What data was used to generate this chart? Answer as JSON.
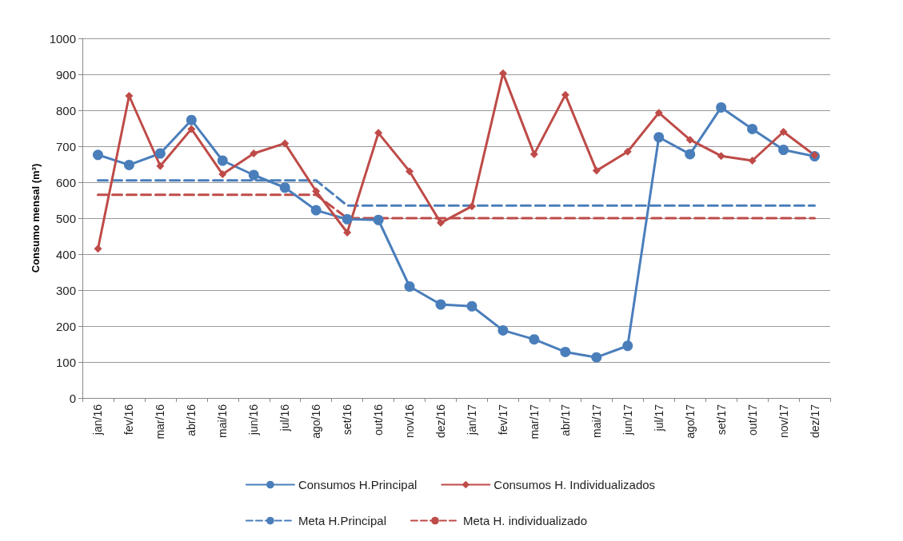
{
  "chart_data": {
    "type": "line",
    "ylabel": "Consumo mensal (m³)",
    "categories": [
      "jan/16",
      "fev/16",
      "mar/16",
      "abr/16",
      "mai/16",
      "jun/16",
      "jul/16",
      "ago/16",
      "set/16",
      "out/16",
      "nov/16",
      "dez/16",
      "jan/17",
      "fev/17",
      "mar/17",
      "abr/17",
      "mai/17",
      "jun/17",
      "jul/17",
      "ago/17",
      "set/17",
      "out/17",
      "nov/17",
      "dez/17"
    ],
    "ylim": [
      0,
      1000
    ],
    "yticks": [
      0,
      100,
      200,
      300,
      400,
      500,
      600,
      700,
      800,
      900,
      1000
    ],
    "grid": "y",
    "legend": "bottom",
    "series": [
      {
        "name": "Consumos H.Principal",
        "color": "#4a7ebb",
        "marker": "circle",
        "line_style": "solid",
        "values": [
          676,
          648,
          680,
          773,
          660,
          620,
          585,
          522,
          497,
          495,
          310,
          260,
          255,
          188,
          163,
          128,
          113,
          145,
          725,
          678,
          808,
          748,
          690,
          672
        ]
      },
      {
        "name": "Consumos H. Individualizados",
        "color": "#be4b48",
        "marker": "diamond",
        "line_style": "solid",
        "values": [
          415,
          840,
          645,
          748,
          622,
          680,
          708,
          575,
          460,
          737,
          630,
          487,
          533,
          903,
          678,
          843,
          632,
          685,
          793,
          718,
          673,
          660,
          740,
          675
        ]
      },
      {
        "name": "Meta H.Principal",
        "color": "#4a7ebb",
        "marker": "none",
        "line_style": "dashed",
        "values": [
          605,
          605,
          605,
          605,
          605,
          605,
          605,
          605,
          535,
          535,
          535,
          535,
          535,
          535,
          535,
          535,
          535,
          535,
          535,
          535,
          535,
          535,
          535,
          535
        ]
      },
      {
        "name": "Meta H. individualizado",
        "color": "#be4b48",
        "marker": "none",
        "line_style": "dashed",
        "values": [
          565,
          565,
          565,
          565,
          565,
          565,
          565,
          565,
          500,
          500,
          500,
          500,
          500,
          500,
          500,
          500,
          500,
          500,
          500,
          500,
          500,
          500,
          500,
          500
        ]
      }
    ]
  }
}
